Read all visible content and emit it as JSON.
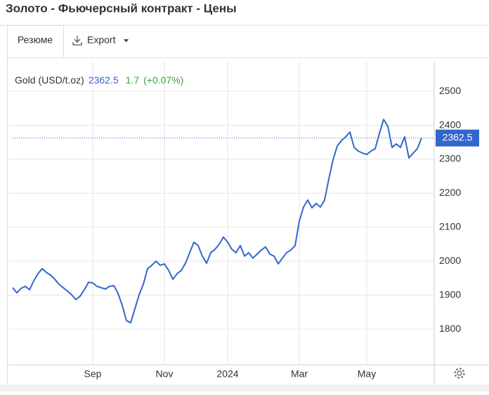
{
  "page": {
    "title": "Золото - Фьючерсный контракт - Цены",
    "tabs": [
      "Резюме",
      "Export"
    ]
  },
  "chart_data": {
    "type": "line",
    "categories": [
      null,
      null,
      null,
      null,
      null,
      null,
      null,
      null,
      null,
      null,
      null,
      null,
      null,
      null,
      null,
      null,
      null,
      null,
      null,
      "Sep",
      null,
      null,
      null,
      null,
      null,
      null,
      null,
      null,
      null,
      null,
      null,
      null,
      null,
      null,
      null,
      null,
      "Nov",
      null,
      null,
      null,
      null,
      null,
      null,
      null,
      null,
      null,
      null,
      null,
      null,
      null,
      null,
      "2024",
      null,
      null,
      null,
      null,
      null,
      null,
      null,
      null,
      null,
      null,
      null,
      null,
      null,
      null,
      null,
      null,
      "Mar",
      null,
      null,
      null,
      null,
      null,
      null,
      null,
      null,
      null,
      null,
      null,
      null,
      null,
      null,
      null,
      "May",
      null,
      null,
      null,
      null,
      null,
      null,
      null,
      null,
      null,
      null,
      null,
      null,
      null
    ],
    "series": [
      {
        "name": "Gold (USD/t.oz)",
        "color": "#3366cc",
        "values": [
          1922,
          1907,
          1920,
          1926,
          1916,
          1942,
          1963,
          1978,
          1967,
          1959,
          1947,
          1932,
          1922,
          1912,
          1901,
          1887,
          1897,
          1916,
          1938,
          1936,
          1926,
          1922,
          1918,
          1926,
          1928,
          1905,
          1870,
          1825,
          1819,
          1860,
          1901,
          1932,
          1978,
          1988,
          2000,
          1988,
          1992,
          1973,
          1947,
          1963,
          1973,
          1994,
          2025,
          2056,
          2046,
          2015,
          1994,
          2025,
          2035,
          2050,
          2071,
          2056,
          2035,
          2025,
          2046,
          2015,
          2025,
          2009,
          2021,
          2033,
          2042,
          2021,
          2015,
          1992,
          2009,
          2025,
          2033,
          2046,
          2118,
          2159,
          2180,
          2157,
          2170,
          2159,
          2180,
          2242,
          2298,
          2339,
          2355,
          2366,
          2380,
          2335,
          2324,
          2318,
          2314,
          2324,
          2331,
          2376,
          2417,
          2397,
          2335,
          2345,
          2335,
          2366,
          2304,
          2318,
          2331,
          2362.5
        ]
      }
    ],
    "change": "1.7",
    "change_percent": "(+0.07%)",
    "ylim": [
      1695,
      2587
    ],
    "yticks": [
      1800,
      1900,
      2000,
      2100,
      2200,
      2300,
      2400,
      2500
    ],
    "grid": true,
    "y_axis_side": "right"
  }
}
